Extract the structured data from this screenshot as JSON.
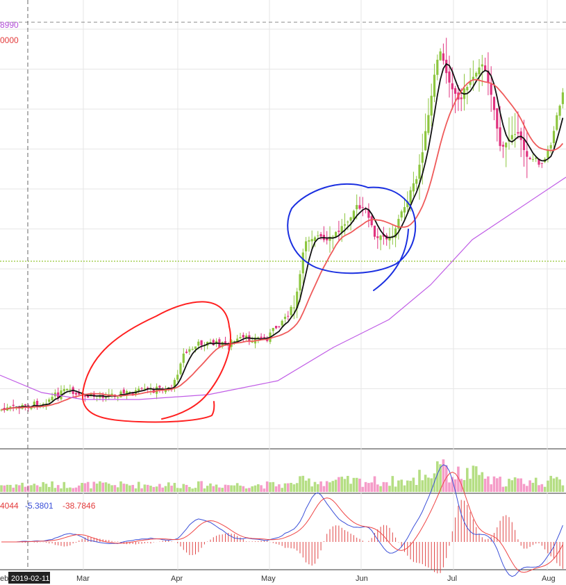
{
  "colors": {
    "up_candle": "#8dc63f",
    "down_candle": "#e0337f",
    "ma_short": "#111111",
    "ma_mid": "#ef5a5a",
    "ma_long": "#c05ce6",
    "grid": "#e6e6e6",
    "crosshair": "#666666",
    "support_line": "#7ab800",
    "annotation_red": "#ff2020",
    "annotation_blue": "#1a2fe0",
    "macd_dif": "#3a4fd8",
    "macd_dea": "#ef4444",
    "macd_hist": "#e04646",
    "volume_up": "#b5de83",
    "volume_down": "#f59cc8",
    "date_box_bg": "#222222",
    "date_box_fg": "#ffffff"
  },
  "price_panel": {
    "top_labels": [
      {
        "text": "8990",
        "color": "#b34fd8"
      },
      {
        "text": "0000",
        "color": "#e33b3b"
      }
    ]
  },
  "macd_panel": {
    "labels": [
      {
        "text": "4044",
        "color": "#e33b3b"
      },
      {
        "text": "-5.3801",
        "color": "#3a4fd8"
      },
      {
        "text": "-38.7846",
        "color": "#e33b3b"
      }
    ]
  },
  "x_axis": {
    "crosshair_date": "2019-02-11",
    "months": [
      "eb",
      "Mar",
      "Apr",
      "May",
      "Jun",
      "Jul",
      "Aug"
    ],
    "left_partial": "eb"
  },
  "chart_data": {
    "type": "candlestick",
    "title": "",
    "x_labels": [
      "Mar",
      "Apr",
      "May",
      "Jun",
      "Jul",
      "Aug"
    ],
    "overlays": [
      "short moving average",
      "mid moving average",
      "long moving average"
    ],
    "indicators": [
      "volume",
      "MACD"
    ],
    "annotations": [
      "red hand-drawn circle around March–April consolidation",
      "blue hand-drawn circle around late May–early June consolidation"
    ],
    "grid": true
  }
}
